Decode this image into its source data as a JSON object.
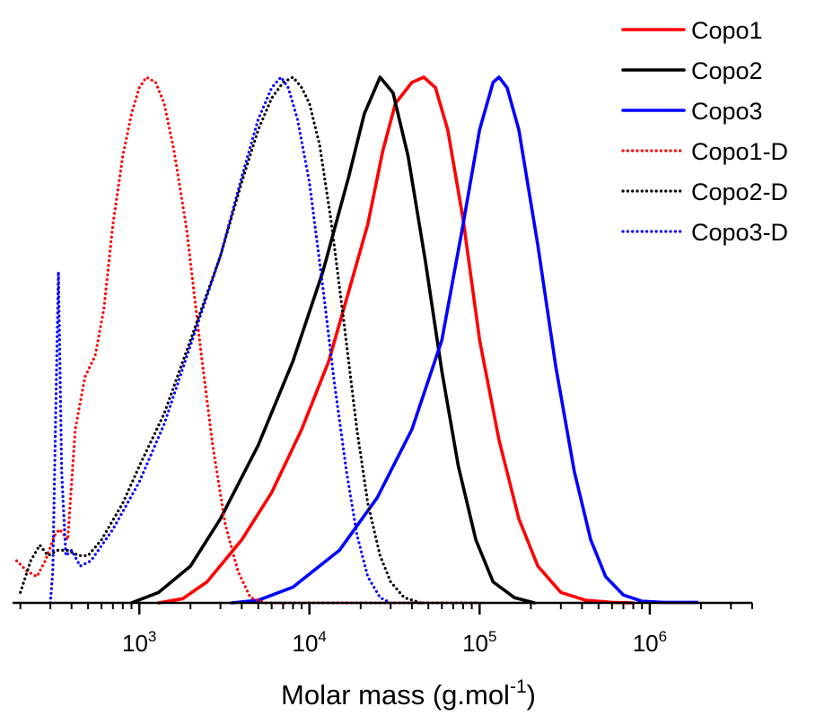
{
  "chart_data": {
    "type": "line",
    "title": "",
    "ylabel": "",
    "xlabel": {
      "main": "Molar mass (g.mol",
      "sup": "-1",
      "close": ")"
    },
    "x_scale": "log",
    "xlim": [
      180,
      4000000
    ],
    "ylim": [
      0,
      1.0
    ],
    "x_ticks": [
      {
        "value": 1000,
        "base": "10",
        "exp": "3"
      },
      {
        "value": 10000,
        "base": "10",
        "exp": "4"
      },
      {
        "value": 100000,
        "base": "10",
        "exp": "5"
      },
      {
        "value": 1000000,
        "base": "10",
        "exp": "6"
      }
    ],
    "grid": false,
    "legend_position": "top-right",
    "series": [
      {
        "name": "Copo1",
        "color": "#ff0000",
        "style": "solid",
        "points": [
          [
            1300,
            0
          ],
          [
            1800,
            0.008
          ],
          [
            2500,
            0.04
          ],
          [
            4000,
            0.12
          ],
          [
            6000,
            0.21
          ],
          [
            9000,
            0.33
          ],
          [
            13000,
            0.46
          ],
          [
            18000,
            0.62
          ],
          [
            22000,
            0.72
          ],
          [
            27000,
            0.86
          ],
          [
            32000,
            0.95
          ],
          [
            40000,
            0.99
          ],
          [
            47000,
            1.0
          ],
          [
            55000,
            0.98
          ],
          [
            65000,
            0.9
          ],
          [
            80000,
            0.73
          ],
          [
            100000,
            0.5
          ],
          [
            130000,
            0.31
          ],
          [
            170000,
            0.16
          ],
          [
            220000,
            0.07
          ],
          [
            300000,
            0.02
          ],
          [
            420000,
            0.005
          ],
          [
            600000,
            0.001
          ],
          [
            800000,
            0
          ]
        ]
      },
      {
        "name": "Copo2",
        "color": "#000000",
        "style": "solid",
        "points": [
          [
            900,
            0
          ],
          [
            1300,
            0.02
          ],
          [
            2000,
            0.07
          ],
          [
            3000,
            0.16
          ],
          [
            5000,
            0.3
          ],
          [
            8000,
            0.46
          ],
          [
            12000,
            0.63
          ],
          [
            17000,
            0.81
          ],
          [
            21000,
            0.93
          ],
          [
            26000,
            1.0
          ],
          [
            31000,
            0.97
          ],
          [
            38000,
            0.85
          ],
          [
            48000,
            0.65
          ],
          [
            60000,
            0.44
          ],
          [
            75000,
            0.26
          ],
          [
            95000,
            0.12
          ],
          [
            120000,
            0.04
          ],
          [
            160000,
            0.01
          ],
          [
            210000,
            0
          ]
        ]
      },
      {
        "name": "Copo3",
        "color": "#0000ff",
        "style": "solid",
        "points": [
          [
            3500,
            0
          ],
          [
            5000,
            0.005
          ],
          [
            8000,
            0.03
          ],
          [
            15000,
            0.1
          ],
          [
            25000,
            0.2
          ],
          [
            40000,
            0.33
          ],
          [
            60000,
            0.5
          ],
          [
            80000,
            0.72
          ],
          [
            100000,
            0.9
          ],
          [
            120000,
            0.99
          ],
          [
            130000,
            1.0
          ],
          [
            145000,
            0.98
          ],
          [
            170000,
            0.9
          ],
          [
            220000,
            0.68
          ],
          [
            280000,
            0.45
          ],
          [
            360000,
            0.25
          ],
          [
            450000,
            0.12
          ],
          [
            550000,
            0.05
          ],
          [
            700000,
            0.015
          ],
          [
            900000,
            0.003
          ],
          [
            1200000,
            0.001
          ],
          [
            1900000,
            0.001
          ]
        ]
      },
      {
        "name": "Copo1-D",
        "color": "#ff0000",
        "style": "dotted",
        "points": [
          [
            190,
            0.08
          ],
          [
            220,
            0.06
          ],
          [
            250,
            0.05
          ],
          [
            280,
            0.08
          ],
          [
            320,
            0.13
          ],
          [
            340,
            0.14
          ],
          [
            380,
            0.12
          ],
          [
            420,
            0.33
          ],
          [
            480,
            0.43
          ],
          [
            550,
            0.47
          ],
          [
            620,
            0.56
          ],
          [
            700,
            0.72
          ],
          [
            800,
            0.85
          ],
          [
            900,
            0.93
          ],
          [
            1000,
            0.98
          ],
          [
            1100,
            1.0
          ],
          [
            1250,
            0.99
          ],
          [
            1400,
            0.95
          ],
          [
            1600,
            0.86
          ],
          [
            1900,
            0.71
          ],
          [
            2300,
            0.48
          ],
          [
            2700,
            0.3
          ],
          [
            3200,
            0.15
          ],
          [
            3800,
            0.06
          ],
          [
            4500,
            0.01
          ],
          [
            5500,
            0
          ],
          [
            100000,
            0
          ]
        ]
      },
      {
        "name": "Copo2-D",
        "color": "#000000",
        "style": "dotted",
        "points": [
          [
            200,
            0.02
          ],
          [
            230,
            0.08
          ],
          [
            260,
            0.11
          ],
          [
            290,
            0.09
          ],
          [
            330,
            0.1
          ],
          [
            380,
            0.1
          ],
          [
            440,
            0.09
          ],
          [
            500,
            0.09
          ],
          [
            600,
            0.12
          ],
          [
            800,
            0.19
          ],
          [
            1000,
            0.26
          ],
          [
            1400,
            0.36
          ],
          [
            2000,
            0.5
          ],
          [
            3000,
            0.66
          ],
          [
            4000,
            0.8
          ],
          [
            5000,
            0.9
          ],
          [
            6000,
            0.96
          ],
          [
            7000,
            0.99
          ],
          [
            8000,
            1.0
          ],
          [
            9000,
            0.98
          ],
          [
            10000,
            0.95
          ],
          [
            11500,
            0.87
          ],
          [
            13500,
            0.72
          ],
          [
            16000,
            0.53
          ],
          [
            19000,
            0.33
          ],
          [
            22000,
            0.19
          ],
          [
            26000,
            0.09
          ],
          [
            30000,
            0.04
          ],
          [
            36000,
            0.01
          ],
          [
            45000,
            0
          ]
        ]
      },
      {
        "name": "Copo3-D",
        "color": "#0000ff",
        "style": "dotted",
        "points": [
          [
            300,
            0
          ],
          [
            310,
            0.06
          ],
          [
            320,
            0.3
          ],
          [
            335,
            0.63
          ],
          [
            350,
            0.25
          ],
          [
            370,
            0.09
          ],
          [
            400,
            0.1
          ],
          [
            450,
            0.07
          ],
          [
            520,
            0.08
          ],
          [
            700,
            0.14
          ],
          [
            1000,
            0.23
          ],
          [
            1400,
            0.34
          ],
          [
            2000,
            0.49
          ],
          [
            3000,
            0.66
          ],
          [
            4000,
            0.81
          ],
          [
            5000,
            0.92
          ],
          [
            6000,
            0.98
          ],
          [
            6800,
            1.0
          ],
          [
            7500,
            0.98
          ],
          [
            8500,
            0.92
          ],
          [
            10000,
            0.8
          ],
          [
            12000,
            0.6
          ],
          [
            14000,
            0.42
          ],
          [
            16500,
            0.25
          ],
          [
            19000,
            0.13
          ],
          [
            22000,
            0.05
          ],
          [
            26000,
            0.01
          ],
          [
            30000,
            0
          ]
        ]
      }
    ]
  }
}
